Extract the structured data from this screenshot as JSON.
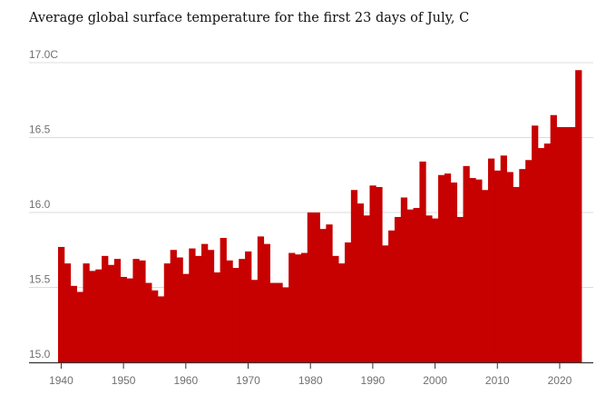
{
  "chart_data": {
    "type": "bar",
    "title": "Average global surface temperature for the first 23 days of July, C",
    "xlabel": "",
    "ylabel": "",
    "ylim": [
      15.0,
      17.0
    ],
    "y_ticks": [
      15.0,
      15.5,
      16.0,
      16.5,
      17.0
    ],
    "y_tick_labels": [
      "15.0",
      "15.5",
      "16.0",
      "16.5",
      "17.0C"
    ],
    "x_ticks": [
      1940,
      1950,
      1960,
      1970,
      1980,
      1990,
      2000,
      2010,
      2020
    ],
    "x_tick_labels": [
      "1940",
      "1950",
      "1960",
      "1970",
      "1980",
      "1990",
      "2000",
      "2010",
      "2020"
    ],
    "grid": true,
    "bar_color": "#c70000",
    "categories": [
      1940,
      1941,
      1942,
      1943,
      1944,
      1945,
      1946,
      1947,
      1948,
      1949,
      1950,
      1951,
      1952,
      1953,
      1954,
      1955,
      1956,
      1957,
      1958,
      1959,
      1960,
      1961,
      1962,
      1963,
      1964,
      1965,
      1966,
      1967,
      1968,
      1969,
      1970,
      1971,
      1972,
      1973,
      1974,
      1975,
      1976,
      1977,
      1978,
      1979,
      1980,
      1981,
      1982,
      1983,
      1984,
      1985,
      1986,
      1987,
      1988,
      1989,
      1990,
      1991,
      1992,
      1993,
      1994,
      1995,
      1996,
      1997,
      1998,
      1999,
      2000,
      2001,
      2002,
      2003,
      2004,
      2005,
      2006,
      2007,
      2008,
      2009,
      2010,
      2011,
      2012,
      2013,
      2014,
      2015,
      2016,
      2017,
      2018,
      2019,
      2020,
      2021,
      2022,
      2023
    ],
    "values": [
      15.77,
      15.66,
      15.51,
      15.47,
      15.66,
      15.61,
      15.62,
      15.71,
      15.65,
      15.69,
      15.57,
      15.56,
      15.69,
      15.68,
      15.53,
      15.48,
      15.44,
      15.66,
      15.75,
      15.7,
      15.59,
      15.76,
      15.71,
      15.79,
      15.75,
      15.6,
      15.83,
      15.68,
      15.63,
      15.69,
      15.74,
      15.55,
      15.84,
      15.79,
      15.53,
      15.53,
      15.5,
      15.73,
      15.72,
      15.73,
      16.0,
      16.0,
      15.89,
      15.92,
      15.71,
      15.66,
      15.8,
      16.15,
      16.06,
      15.98,
      16.18,
      16.17,
      15.78,
      15.88,
      15.97,
      16.1,
      16.02,
      16.03,
      16.34,
      15.98,
      15.96,
      16.25,
      16.26,
      16.2,
      15.97,
      16.31,
      16.23,
      16.22,
      16.15,
      16.36,
      16.28,
      16.38,
      16.27,
      16.17,
      16.29,
      16.35,
      16.58,
      16.43,
      16.46,
      16.65,
      16.57,
      16.57,
      16.57,
      16.95
    ]
  }
}
